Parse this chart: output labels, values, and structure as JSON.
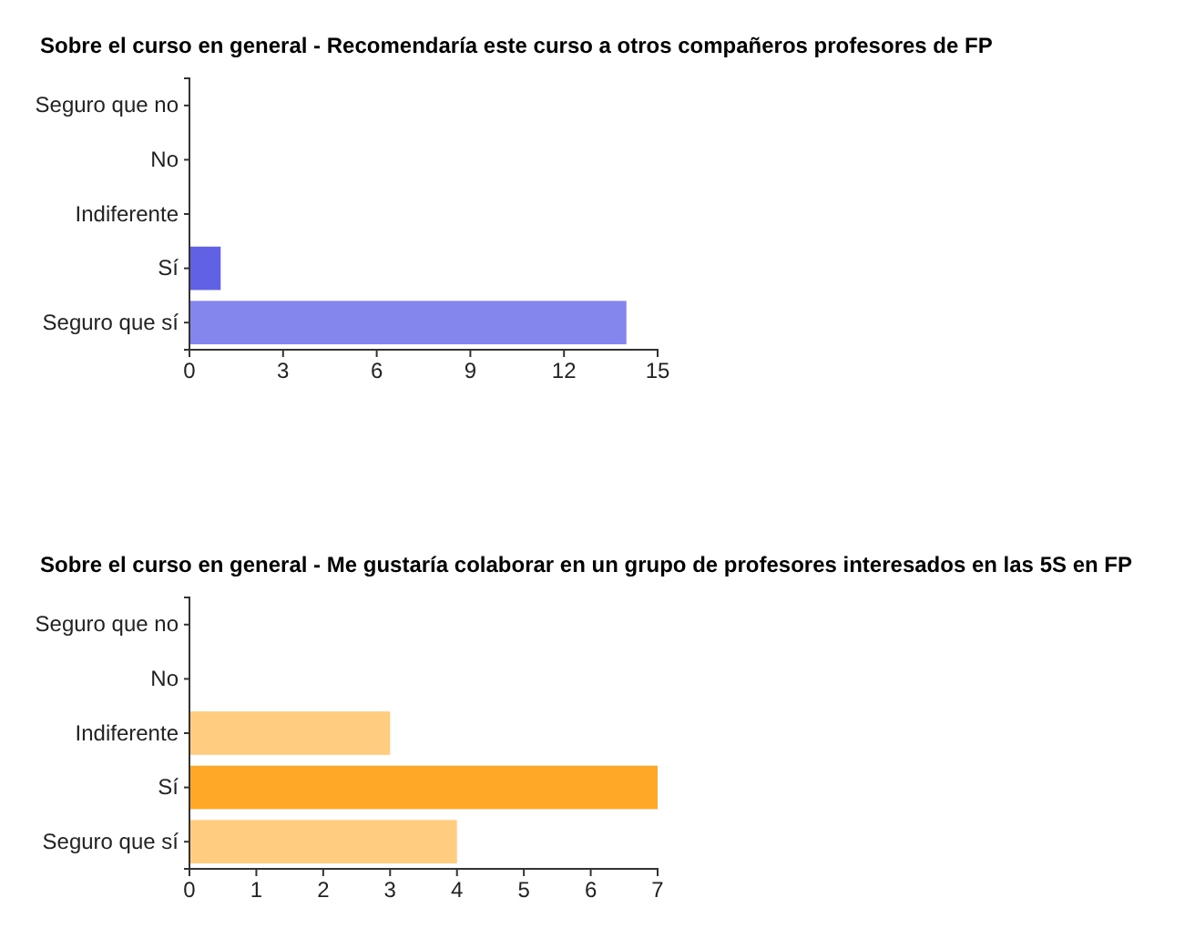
{
  "chart_data": [
    {
      "type": "bar",
      "orientation": "horizontal",
      "title": "Sobre el curso en general - Recomendaría este curso a otros compañeros profesores de FP",
      "categories": [
        "Seguro que no",
        "No",
        "Indiferente",
        "Sí",
        "Seguro que sí"
      ],
      "values": [
        0,
        0,
        0,
        1,
        14
      ],
      "colors": [
        "#8080ee",
        "#8080ee",
        "#8080ee",
        "#6161e6",
        "#8585ee"
      ],
      "xlim": [
        0,
        15
      ],
      "xticks": [
        0,
        3,
        6,
        9,
        12,
        15
      ]
    },
    {
      "type": "bar",
      "orientation": "horizontal",
      "title": "Sobre el curso en general - Me gustaría colaborar en un grupo de profesores interesados en las 5S en FP",
      "categories": [
        "Seguro que no",
        "No",
        "Indiferente",
        "Sí",
        "Seguro que sí"
      ],
      "values": [
        0,
        0,
        3,
        7,
        4
      ],
      "colors": [
        "#ffcc80",
        "#ffcc80",
        "#ffcc80",
        "#ffa726",
        "#ffcc80"
      ],
      "xlim": [
        0,
        7
      ],
      "xticks": [
        0,
        1,
        2,
        3,
        4,
        5,
        6,
        7
      ]
    }
  ]
}
